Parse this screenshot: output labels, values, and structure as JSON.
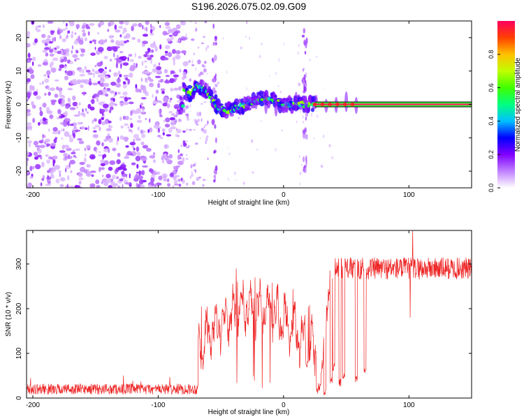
{
  "title": "S196.2026.075.02.09.G09",
  "chart_data": [
    {
      "type": "heatmap",
      "xlabel": "Height of straight line (km)",
      "ylabel": "Frequency (Hz)",
      "xlim": [
        -205,
        150
      ],
      "ylim": [
        -25,
        25
      ],
      "xticks": [
        -200,
        -100,
        0,
        100
      ],
      "yticks": [
        -20,
        -10,
        0,
        10,
        20
      ],
      "noise_region": [
        -205,
        -78
      ],
      "sparse_region": [
        -78,
        -60
      ],
      "vertical_stripes_x": [
        -55,
        17
      ],
      "tone_path": [
        {
          "x": -80,
          "y": 4
        },
        {
          "x": -75,
          "y": 3
        },
        {
          "x": -68,
          "y": 6
        },
        {
          "x": -62,
          "y": 4
        },
        {
          "x": -58,
          "y": 2
        },
        {
          "x": -52,
          "y": -1
        },
        {
          "x": -45,
          "y": -2
        },
        {
          "x": -38,
          "y": -1
        },
        {
          "x": -30,
          "y": 0
        },
        {
          "x": -22,
          "y": 1
        },
        {
          "x": -15,
          "y": 2
        },
        {
          "x": -8,
          "y": 1
        },
        {
          "x": 0,
          "y": 0
        },
        {
          "x": 10,
          "y": 0
        },
        {
          "x": 25,
          "y": 0
        },
        {
          "x": 60,
          "y": 0
        },
        {
          "x": 150,
          "y": 0
        }
      ],
      "solid_line_from_x": 25,
      "colorbar": {
        "label": "Normalized spectral amplitude",
        "min": 0,
        "max": 1,
        "ticks": [
          "0.0",
          "0.2",
          "0.4",
          "0.6",
          "0.8"
        ],
        "tick_values": [
          0,
          0.2,
          0.4,
          0.6,
          0.8
        ],
        "colors": [
          "#ffffff",
          "#c080ff",
          "#8000ff",
          "#0000ff",
          "#00c0ff",
          "#00ff80",
          "#40ff00",
          "#c0ff00",
          "#ffc000",
          "#ff4000",
          "#ff0060"
        ]
      }
    },
    {
      "type": "line",
      "xlabel": "Height of straight line (km)",
      "ylabel": "SNR (10 * v/v)",
      "xlim": [
        -205,
        150
      ],
      "ylim": [
        0,
        375
      ],
      "xticks": [
        -200,
        -100,
        0,
        100
      ],
      "yticks": [
        0,
        100,
        200,
        300
      ],
      "color": "#ee2222",
      "segments": [
        {
          "x0": -205,
          "x1": -68,
          "baseline": 20,
          "noise": 12
        },
        {
          "x0": -68,
          "x1": 30,
          "baseline": 110,
          "noise": 60,
          "peak_x": 15,
          "peak": 215
        },
        {
          "x0": 30,
          "x1": 150,
          "baseline": 290,
          "noise": 25
        }
      ],
      "dropouts": [
        {
          "x": 33,
          "min": 5
        },
        {
          "x": 38,
          "min": 30
        },
        {
          "x": 40,
          "min": 60
        },
        {
          "x": 45,
          "min": 25
        },
        {
          "x": 48,
          "min": 40
        },
        {
          "x": 58,
          "min": 30
        },
        {
          "x": 65,
          "min": 50
        }
      ],
      "spikes": [
        {
          "x": 103,
          "value": 375
        },
        {
          "x": 101,
          "value": 180
        }
      ]
    }
  ]
}
